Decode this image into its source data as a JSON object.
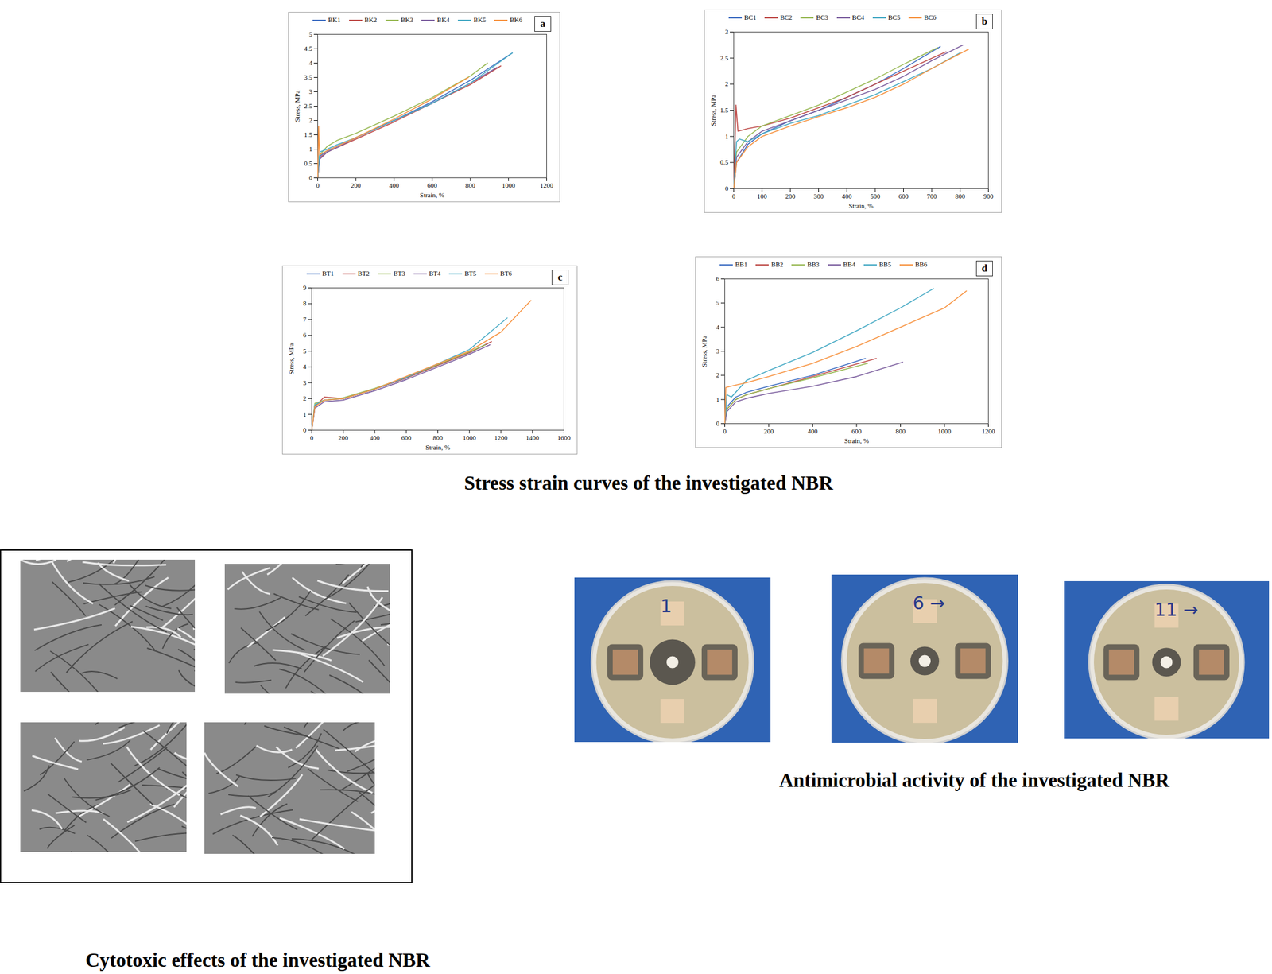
{
  "chart_data": [
    {
      "type": "line",
      "panel_label": "a",
      "x_label": "Strain, %",
      "y_label": "Stress, MPa",
      "xlim": [
        0,
        1200
      ],
      "xticks": [
        0,
        200,
        400,
        600,
        800,
        1000,
        1200
      ],
      "ylim": [
        0,
        5
      ],
      "yticks": [
        0,
        0.5,
        1,
        1.5,
        2,
        2.5,
        3,
        3.5,
        4,
        4.5,
        5
      ],
      "series": [
        {
          "name": "BK1",
          "color": "#4472c4",
          "x": [
            0,
            10,
            50,
            100,
            200,
            400,
            600,
            800,
            1020
          ],
          "values": [
            0,
            0.75,
            0.95,
            1.1,
            1.4,
            2.0,
            2.65,
            3.4,
            4.35
          ]
        },
        {
          "name": "BK2",
          "color": "#c0504d",
          "x": [
            0,
            10,
            50,
            100,
            200,
            400,
            600,
            800,
            960
          ],
          "values": [
            0,
            0.7,
            0.9,
            1.05,
            1.35,
            1.95,
            2.6,
            3.25,
            3.9
          ]
        },
        {
          "name": "BK3",
          "color": "#9bbb59",
          "x": [
            0,
            10,
            50,
            100,
            200,
            400,
            600,
            800,
            890
          ],
          "values": [
            0,
            0.8,
            1.1,
            1.3,
            1.55,
            2.15,
            2.8,
            3.55,
            4.0
          ]
        },
        {
          "name": "BK4",
          "color": "#8064a2",
          "x": [
            0,
            10,
            50,
            100,
            200,
            400,
            600,
            800,
            940
          ],
          "values": [
            0,
            0.65,
            0.9,
            1.05,
            1.4,
            2.0,
            2.6,
            3.3,
            3.85
          ]
        },
        {
          "name": "BK5",
          "color": "#4bacc6",
          "x": [
            0,
            10,
            50,
            100,
            200,
            400,
            600,
            800,
            1020
          ],
          "values": [
            0,
            0.9,
            1.0,
            1.15,
            1.4,
            2.0,
            2.6,
            3.3,
            4.35
          ]
        },
        {
          "name": "BK6",
          "color": "#f79646",
          "x": [
            0,
            5,
            10,
            50,
            100,
            200,
            400,
            600,
            790
          ],
          "values": [
            0,
            1.8,
            0.8,
            0.95,
            1.1,
            1.4,
            2.05,
            2.75,
            3.5
          ]
        }
      ]
    },
    {
      "type": "line",
      "panel_label": "b",
      "x_label": "Strain, %",
      "y_label": "Stress, MPa",
      "xlim": [
        0,
        900
      ],
      "xticks": [
        0,
        100,
        200,
        300,
        400,
        500,
        600,
        700,
        800,
        900
      ],
      "ylim": [
        0,
        3
      ],
      "yticks": [
        0,
        0.5,
        1,
        1.5,
        2,
        2.5,
        3
      ],
      "series": [
        {
          "name": "BC1",
          "color": "#4472c4",
          "x": [
            0,
            10,
            50,
            100,
            200,
            300,
            400,
            500,
            600,
            730
          ],
          "values": [
            0,
            0.5,
            0.85,
            1.05,
            1.3,
            1.5,
            1.75,
            2.0,
            2.3,
            2.72
          ]
        },
        {
          "name": "BC2",
          "color": "#c0504d",
          "x": [
            0,
            8,
            15,
            50,
            100,
            200,
            300,
            400,
            500,
            600,
            750
          ],
          "values": [
            0,
            1.6,
            1.1,
            1.15,
            1.2,
            1.35,
            1.55,
            1.75,
            2.0,
            2.25,
            2.62
          ]
        },
        {
          "name": "BC3",
          "color": "#9bbb59",
          "x": [
            0,
            10,
            50,
            100,
            200,
            300,
            400,
            500,
            600,
            720
          ],
          "values": [
            0,
            0.7,
            1.0,
            1.2,
            1.4,
            1.6,
            1.85,
            2.1,
            2.38,
            2.7
          ]
        },
        {
          "name": "BC4",
          "color": "#8064a2",
          "x": [
            0,
            10,
            50,
            100,
            200,
            300,
            400,
            500,
            600,
            700,
            810
          ],
          "values": [
            0,
            0.6,
            0.9,
            1.1,
            1.3,
            1.5,
            1.7,
            1.9,
            2.15,
            2.45,
            2.75
          ]
        },
        {
          "name": "BC5",
          "color": "#4bacc6",
          "x": [
            0,
            10,
            20,
            50,
            100,
            200,
            300,
            400,
            500,
            600,
            700,
            800
          ],
          "values": [
            0,
            0.9,
            0.95,
            0.9,
            1.05,
            1.25,
            1.4,
            1.6,
            1.8,
            2.05,
            2.3,
            2.6
          ]
        },
        {
          "name": "BC6",
          "color": "#f79646",
          "x": [
            0,
            10,
            50,
            100,
            200,
            300,
            400,
            500,
            600,
            700,
            830
          ],
          "values": [
            0,
            0.5,
            0.8,
            1.0,
            1.2,
            1.38,
            1.55,
            1.75,
            2.0,
            2.3,
            2.67
          ]
        }
      ]
    },
    {
      "type": "line",
      "panel_label": "c",
      "x_label": "Strain, %",
      "y_label": "Stress, MPa",
      "xlim": [
        0,
        1600
      ],
      "xticks": [
        0,
        200,
        400,
        600,
        800,
        1000,
        1200,
        1400,
        1600
      ],
      "ylim": [
        0,
        9
      ],
      "yticks": [
        0,
        1,
        2,
        3,
        4,
        5,
        6,
        7,
        8,
        9
      ],
      "series": [
        {
          "name": "BT1",
          "color": "#4472c4",
          "x": [
            0,
            20,
            80,
            200,
            400,
            600,
            800,
            1000,
            1120
          ],
          "values": [
            0,
            1.6,
            1.9,
            2.0,
            2.6,
            3.3,
            4.1,
            4.9,
            5.5
          ]
        },
        {
          "name": "BT2",
          "color": "#c0504d",
          "x": [
            0,
            20,
            80,
            200,
            400,
            600,
            800,
            1000,
            1140
          ],
          "values": [
            0,
            1.5,
            2.1,
            2.0,
            2.6,
            3.3,
            4.1,
            4.9,
            5.6
          ]
        },
        {
          "name": "BT3",
          "color": "#9bbb59",
          "x": [
            0,
            20,
            80,
            200,
            400,
            600,
            800,
            1000,
            1100
          ],
          "values": [
            0,
            1.7,
            1.9,
            2.05,
            2.65,
            3.35,
            4.15,
            4.95,
            5.4
          ]
        },
        {
          "name": "BT4",
          "color": "#8064a2",
          "x": [
            0,
            20,
            80,
            200,
            400,
            600,
            800,
            1000,
            1130
          ],
          "values": [
            0,
            1.4,
            1.8,
            1.9,
            2.5,
            3.2,
            4.0,
            4.8,
            5.4
          ]
        },
        {
          "name": "BT5",
          "color": "#4bacc6",
          "x": [
            0,
            20,
            80,
            200,
            400,
            600,
            800,
            1000,
            1240
          ],
          "values": [
            0,
            1.6,
            1.9,
            2.0,
            2.6,
            3.35,
            4.2,
            5.1,
            7.1
          ]
        },
        {
          "name": "BT6",
          "color": "#f79646",
          "x": [
            0,
            20,
            80,
            200,
            400,
            600,
            800,
            1000,
            1200,
            1390
          ],
          "values": [
            0,
            1.5,
            1.9,
            2.0,
            2.6,
            3.4,
            4.2,
            5.0,
            6.2,
            8.2
          ]
        }
      ]
    },
    {
      "type": "line",
      "panel_label": "d",
      "x_label": "Strain, %",
      "y_label": "Stress, MPa",
      "xlim": [
        0,
        1200
      ],
      "xticks": [
        0,
        200,
        400,
        600,
        800,
        1000,
        1200
      ],
      "ylim": [
        0,
        6
      ],
      "yticks": [
        0,
        1,
        2,
        3,
        4,
        5,
        6
      ],
      "series": [
        {
          "name": "BB1",
          "color": "#4472c4",
          "x": [
            0,
            10,
            50,
            100,
            200,
            400,
            640
          ],
          "values": [
            0,
            0.7,
            1.1,
            1.3,
            1.55,
            2.0,
            2.7
          ]
        },
        {
          "name": "BB2",
          "color": "#c0504d",
          "x": [
            0,
            10,
            50,
            100,
            200,
            400,
            690
          ],
          "values": [
            0,
            0.6,
            1.0,
            1.2,
            1.45,
            1.95,
            2.7
          ]
        },
        {
          "name": "BB3",
          "color": "#9bbb59",
          "x": [
            0,
            10,
            50,
            100,
            200,
            400,
            650
          ],
          "values": [
            0,
            0.6,
            1.0,
            1.2,
            1.45,
            1.9,
            2.5
          ]
        },
        {
          "name": "BB4",
          "color": "#8064a2",
          "x": [
            0,
            10,
            50,
            100,
            200,
            400,
            600,
            810
          ],
          "values": [
            0,
            0.5,
            0.9,
            1.05,
            1.25,
            1.55,
            1.95,
            2.55
          ]
        },
        {
          "name": "BB5",
          "color": "#4bacc6",
          "x": [
            0,
            10,
            30,
            100,
            200,
            400,
            600,
            800,
            950
          ],
          "values": [
            0,
            1.2,
            1.1,
            1.8,
            2.2,
            2.95,
            3.85,
            4.8,
            5.6
          ]
        },
        {
          "name": "BB6",
          "color": "#f79646",
          "x": [
            0,
            5,
            50,
            100,
            200,
            400,
            600,
            800,
            1000,
            1100
          ],
          "values": [
            0,
            1.5,
            1.6,
            1.7,
            1.95,
            2.5,
            3.2,
            4.0,
            4.8,
            5.5
          ]
        }
      ]
    }
  ],
  "captions": {
    "stress_strain": "Stress strain curves of the investigated NBR",
    "cytotoxic": "Cytotoxic effects of the investigated NBR",
    "antimicrobial": "Antimicrobial activity  of the investigated NBR"
  },
  "plate_labels": [
    "1",
    "6 →",
    "11 →"
  ]
}
